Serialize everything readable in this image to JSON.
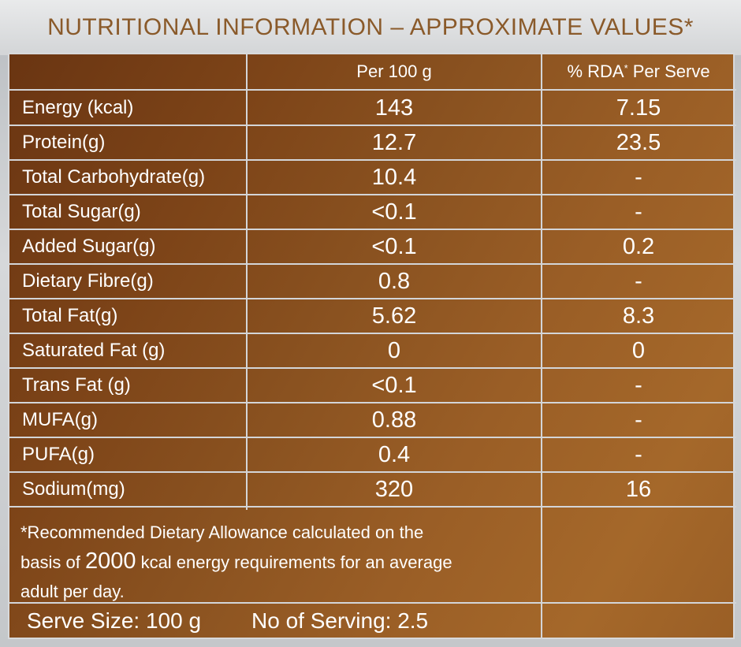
{
  "title": "NUTRITIONAL INFORMATION – APPROXIMATE VALUES*",
  "headers": {
    "col1": "",
    "col2": "Per 100 g",
    "col3_pre": "% RDA",
    "col3_sup": "*",
    "col3_post": " Per Serve"
  },
  "rows": [
    {
      "name": "Energy (kcal)",
      "per100": "143",
      "rda": "7.15"
    },
    {
      "name": "Protein(g)",
      "per100": "12.7",
      "rda": "23.5"
    },
    {
      "name": "Total Carbohydrate(g)",
      "per100": "10.4",
      "rda": "-"
    },
    {
      "name": "Total Sugar(g)",
      "per100": "<0.1",
      "rda": "-"
    },
    {
      "name": "Added Sugar(g)",
      "per100": "<0.1",
      "rda": "0.2"
    },
    {
      "name": "Dietary Fibre(g)",
      "per100": "0.8",
      "rda": "-"
    },
    {
      "name": "Total Fat(g)",
      "per100": "5.62",
      "rda": "8.3"
    },
    {
      "name": "Saturated Fat (g)",
      "per100": "0",
      "rda": "0"
    },
    {
      "name": "Trans Fat (g)",
      "per100": "<0.1",
      "rda": "-"
    },
    {
      "name": "MUFA(g)",
      "per100": "0.88",
      "rda": "-"
    },
    {
      "name": "PUFA(g)",
      "per100": "0.4",
      "rda": "-"
    },
    {
      "name": "Sodium(mg)",
      "per100": "320",
      "rda": "16"
    }
  ],
  "footnote": {
    "line1": "*Recommended Dietary Allowance calculated on the",
    "line2_pre": "basis of ",
    "line2_num": "2000",
    "line2_post": " kcal energy requirements for an average",
    "line3": "adult per day."
  },
  "serve_size": "Serve Size: 100 g",
  "servings": "No of Serving: 2.5",
  "colors": {
    "title": "#8a5a2a",
    "table_bg_dark": "#6a3512",
    "table_bg_light": "#a5682a",
    "grid": "#d3d5d8"
  }
}
